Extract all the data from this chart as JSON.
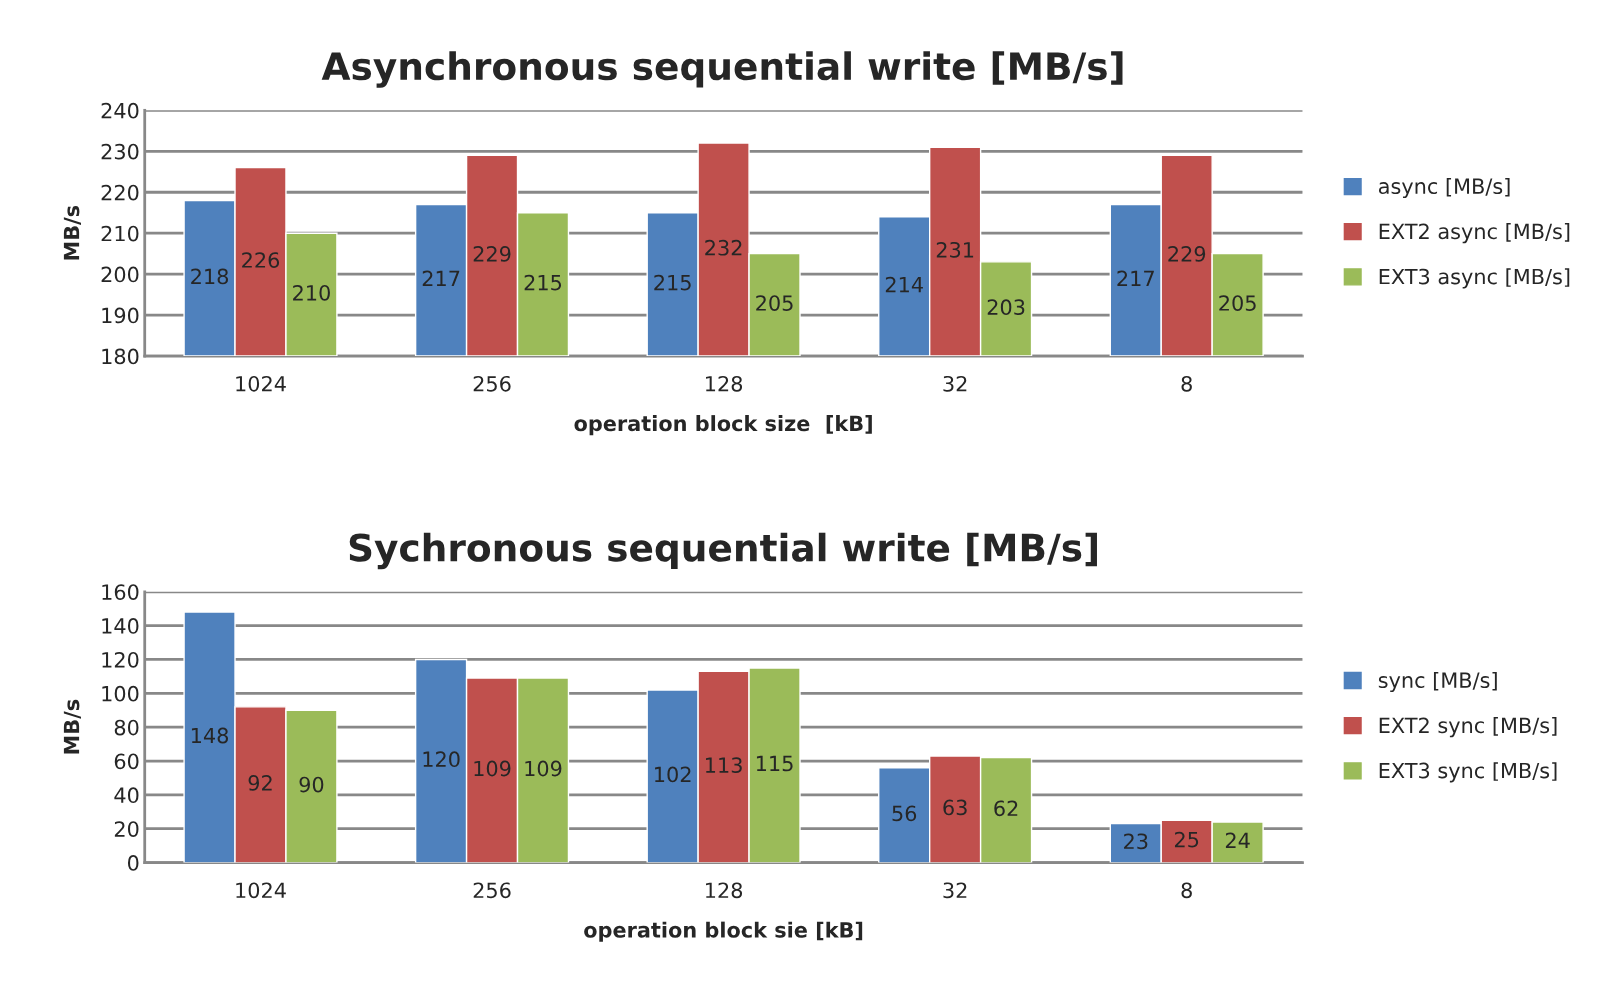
{
  "chart_data": [
    {
      "type": "bar",
      "title": "Asynchronous sequential write [MB/s]",
      "xlabel": "operation block size  [kB]",
      "ylabel": "MB/s",
      "categories": [
        "1024",
        "256",
        "128",
        "32",
        "8"
      ],
      "series": [
        {
          "name": "async [MB/s]",
          "color": "#4f81bd",
          "values": [
            218,
            217,
            215,
            214,
            217
          ]
        },
        {
          "name": "EXT2 async [MB/s]",
          "color": "#c0504d",
          "values": [
            226,
            229,
            232,
            231,
            229
          ]
        },
        {
          "name": "EXT3 async [MB/s]",
          "color": "#9bbb59",
          "values": [
            210,
            215,
            205,
            203,
            205
          ]
        }
      ],
      "ylim": [
        180,
        240
      ],
      "yticks": [
        180,
        190,
        200,
        210,
        220,
        230,
        240
      ],
      "grid": "y",
      "legend": "right",
      "data_labels": true
    },
    {
      "type": "bar",
      "title": "Sychronous sequential write [MB/s]",
      "xlabel": "operation block sie [kB]",
      "ylabel": "MB/s",
      "categories": [
        "1024",
        "256",
        "128",
        "32",
        "8"
      ],
      "series": [
        {
          "name": "sync [MB/s]",
          "color": "#4f81bd",
          "values": [
            148,
            120,
            102,
            56,
            23
          ]
        },
        {
          "name": "EXT2 sync [MB/s]",
          "color": "#c0504d",
          "values": [
            92,
            109,
            113,
            63,
            25
          ]
        },
        {
          "name": "EXT3 sync [MB/s]",
          "color": "#9bbb59",
          "values": [
            90,
            109,
            115,
            62,
            24
          ]
        }
      ],
      "ylim": [
        0,
        160
      ],
      "yticks": [
        0,
        20,
        40,
        60,
        80,
        100,
        120,
        140,
        160
      ],
      "grid": "y",
      "legend": "right",
      "data_labels": true
    }
  ]
}
